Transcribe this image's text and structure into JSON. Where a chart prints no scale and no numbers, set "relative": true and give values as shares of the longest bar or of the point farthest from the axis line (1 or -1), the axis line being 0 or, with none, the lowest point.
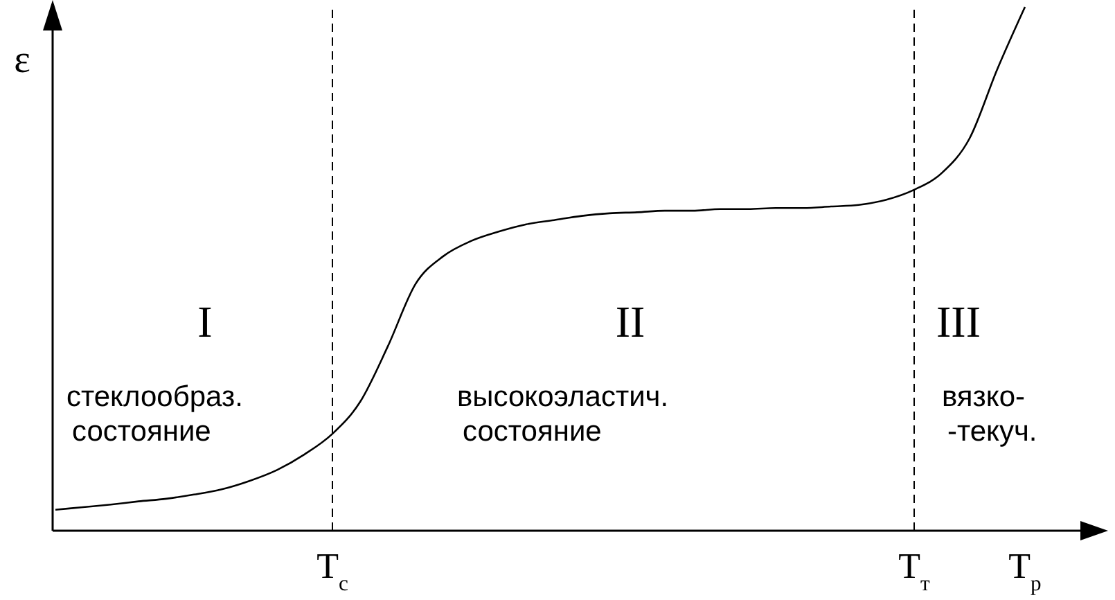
{
  "chart_data": {
    "type": "line",
    "relative": true,
    "ylabel": "ε",
    "categories": [
      null,
      null,
      null,
      null,
      null,
      null,
      null,
      null,
      null,
      null,
      "T$_{с}$",
      null,
      null,
      null,
      null,
      null,
      null,
      null,
      null,
      null,
      null,
      null,
      null,
      null,
      null,
      null,
      null,
      null,
      null,
      null,
      null,
      "T$_{т}$",
      null,
      null,
      null,
      "T$_{р}$"
    ],
    "values": [
      0.04,
      0.045,
      0.05,
      0.056,
      0.061,
      0.069,
      0.079,
      0.095,
      0.116,
      0.146,
      0.185,
      0.246,
      0.352,
      0.471,
      0.524,
      0.553,
      0.571,
      0.585,
      0.593,
      0.601,
      0.606,
      0.608,
      0.611,
      0.611,
      0.614,
      0.614,
      0.616,
      0.616,
      0.619,
      0.622,
      0.632,
      0.651,
      0.683,
      0.749,
      0.881,
      1
    ],
    "color": "#000000",
    "line_style": "solid",
    "ref_lines": [
      {
        "axis": "x",
        "value": "T$_{с}$",
        "color": "#000000",
        "line_style": "dashed"
      },
      {
        "axis": "x",
        "value": "T$_{т}$",
        "color": "#000000",
        "line_style": "dashed"
      }
    ],
    "annotations": [
      "I",
      "II",
      "III",
      "стеклообраз.\nсостояние",
      "высокоэластич.\nсостояние",
      "вязко-\n-текуч."
    ]
  }
}
